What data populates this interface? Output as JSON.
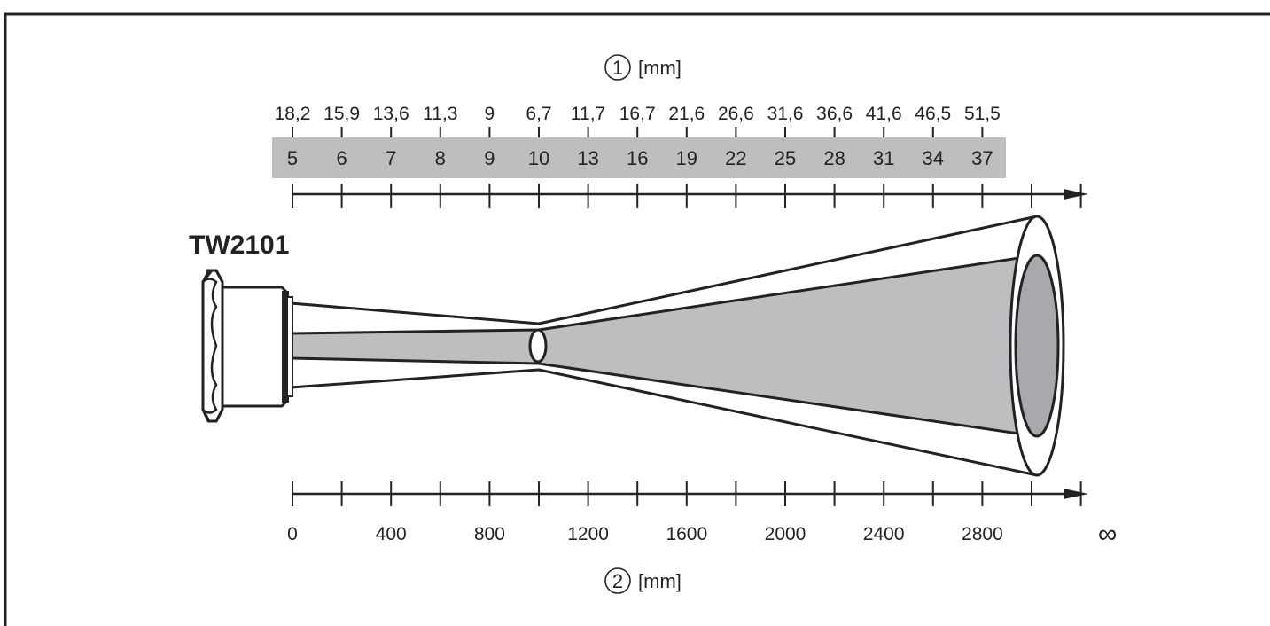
{
  "model": "TW2101",
  "top_axis": {
    "marker": "1",
    "unit": "[mm]",
    "spot_sizes": [
      "18,2",
      "15,9",
      "13,6",
      "11,3",
      "9",
      "6,7",
      "11,7",
      "16,7",
      "21,6",
      "26,6",
      "31,6",
      "36,6",
      "41,6",
      "46,5",
      "51,5"
    ],
    "band_values": [
      "5",
      "6",
      "7",
      "8",
      "9",
      "10",
      "13",
      "16",
      "19",
      "22",
      "25",
      "28",
      "31",
      "34",
      "37"
    ]
  },
  "bottom_axis": {
    "marker": "2",
    "unit": "[mm]",
    "labels": [
      "0",
      "400",
      "800",
      "1200",
      "1600",
      "2000",
      "2400",
      "2800",
      "∞"
    ]
  },
  "colors": {
    "line": "#222222",
    "band_fill": "#bcbec0",
    "cone_fill": "#bcbec0",
    "end_fill": "#a7a9ac"
  }
}
